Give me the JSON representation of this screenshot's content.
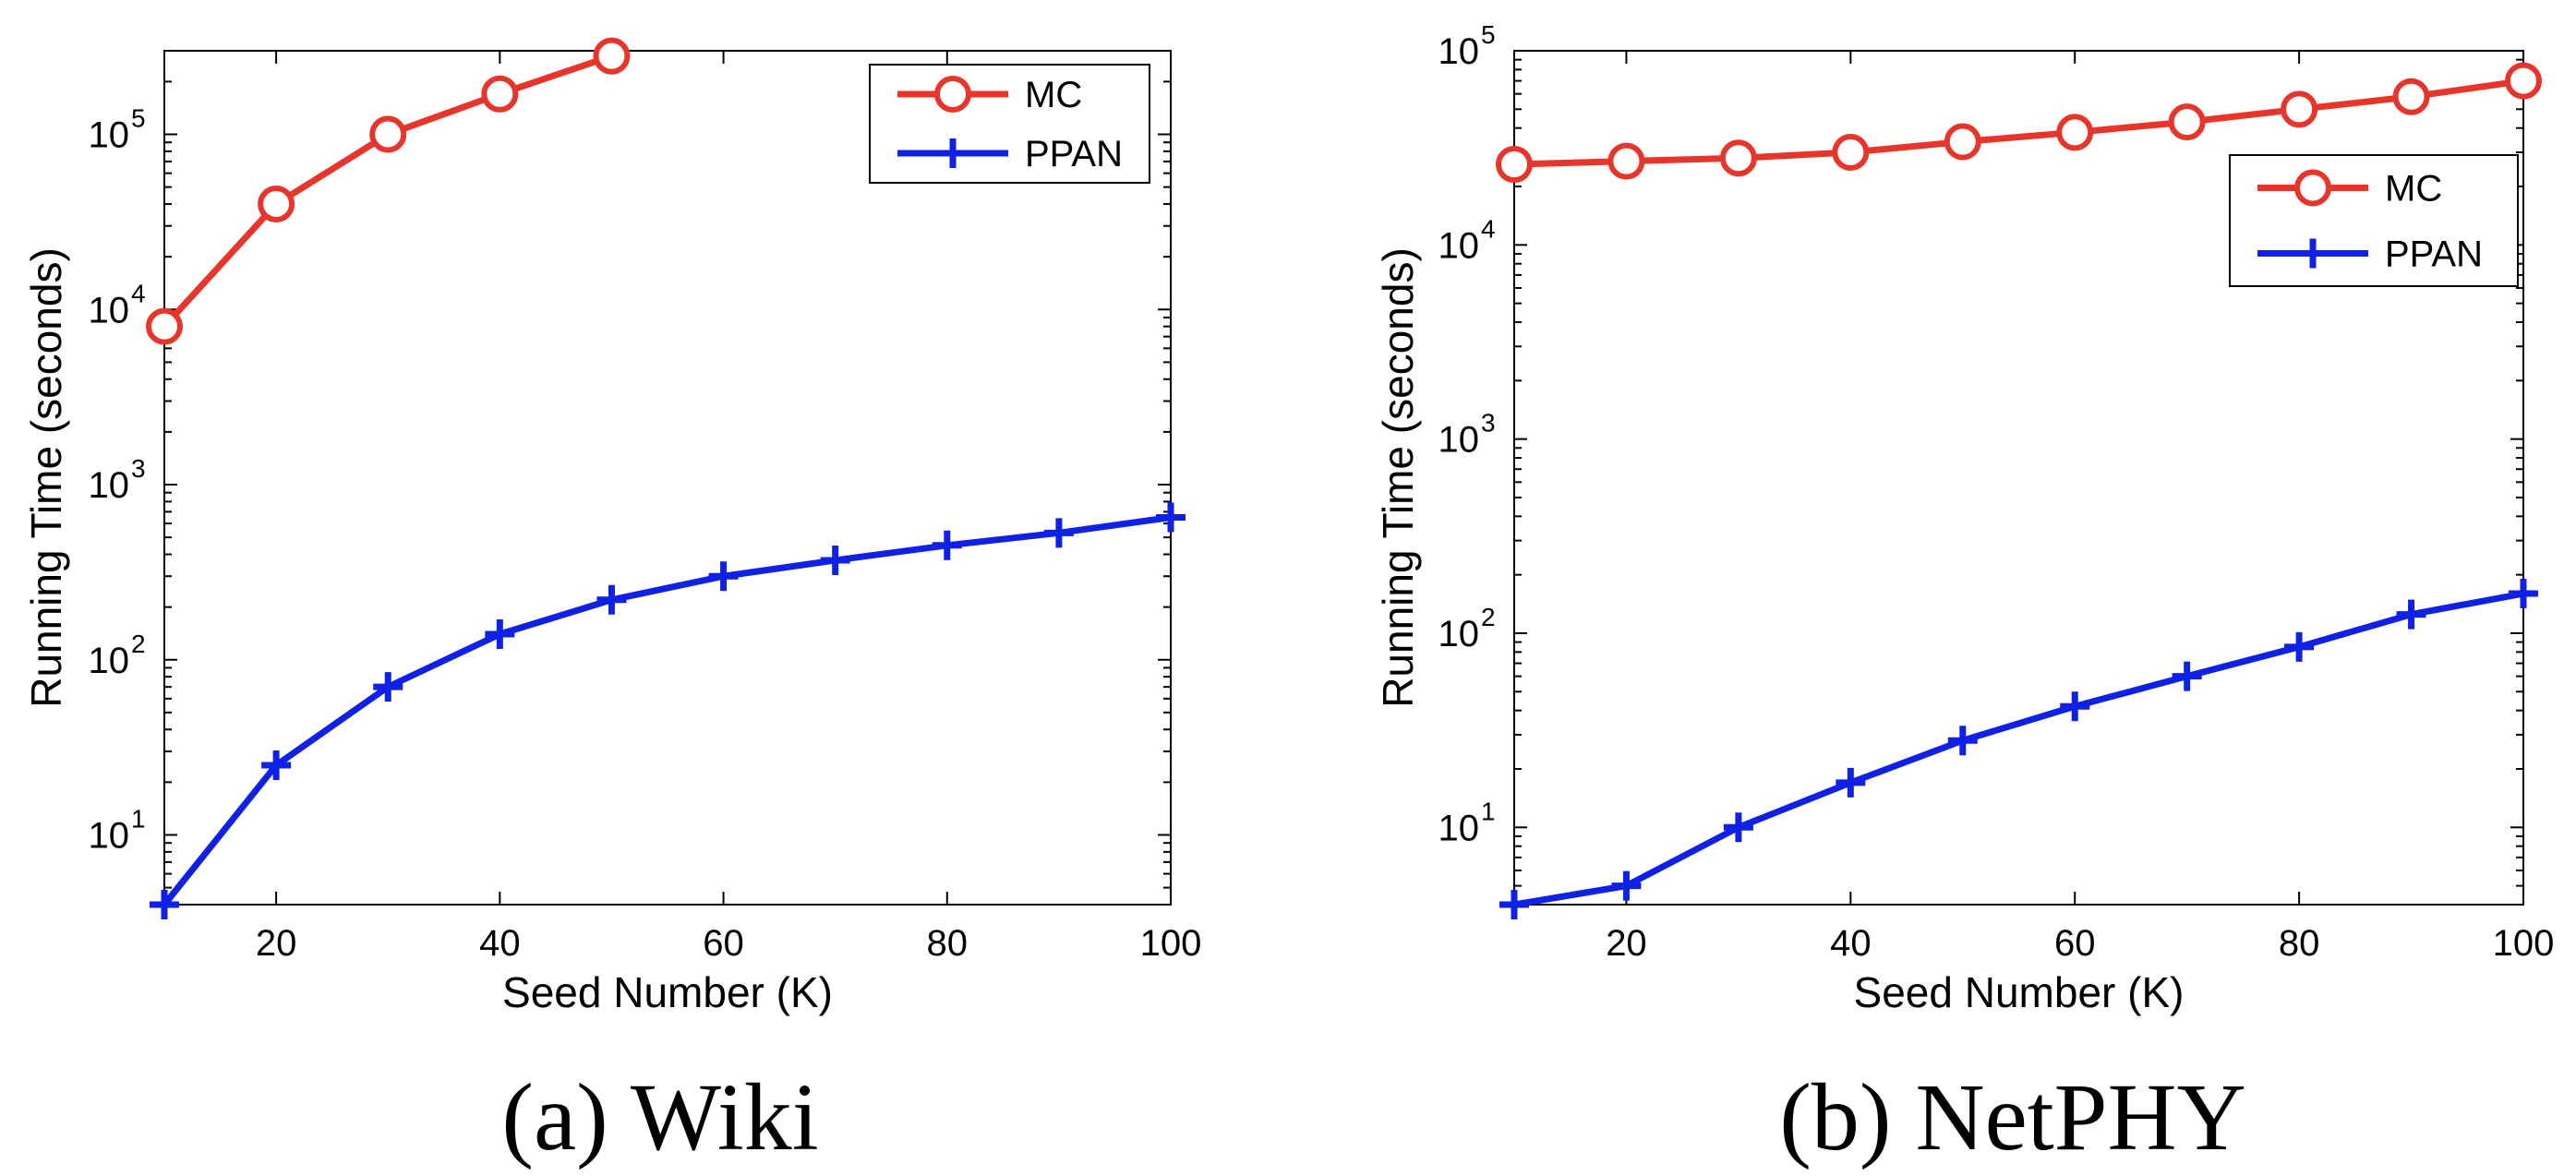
{
  "chart_data": [
    {
      "type": "line",
      "caption": "(a) Wiki",
      "xlabel": "Seed Number (K)",
      "ylabel": "Running Time (seconds)",
      "yscale": "log",
      "xlim": [
        10,
        100
      ],
      "ylim": [
        4,
        300000
      ],
      "xticks": [
        20,
        40,
        60,
        80,
        100
      ],
      "yticks": [
        {
          "value": 10,
          "base": "10",
          "exp": "1"
        },
        {
          "value": 100,
          "base": "10",
          "exp": "2"
        },
        {
          "value": 1000,
          "base": "10",
          "exp": "3"
        },
        {
          "value": 10000,
          "base": "10",
          "exp": "4"
        },
        {
          "value": 100000,
          "base": "10",
          "exp": "5"
        }
      ],
      "legend_position": "top-right",
      "series": [
        {
          "name": "MC",
          "color": "#e8352b",
          "marker": "circle",
          "x": [
            10,
            20,
            30,
            40,
            50
          ],
          "y": [
            8000,
            40000,
            100000,
            170000,
            280000
          ]
        },
        {
          "name": "PPAN",
          "color": "#1021e6",
          "marker": "plus",
          "x": [
            10,
            20,
            30,
            40,
            50,
            60,
            70,
            80,
            90,
            100
          ],
          "y": [
            4,
            25,
            70,
            140,
            220,
            300,
            370,
            450,
            530,
            650
          ]
        }
      ]
    },
    {
      "type": "line",
      "caption": "(b) NetPHY",
      "xlabel": "Seed Number (K)",
      "ylabel": "Running Time (seconds)",
      "yscale": "log",
      "xlim": [
        10,
        100
      ],
      "ylim": [
        4,
        100000
      ],
      "xticks": [
        20,
        40,
        60,
        80,
        100
      ],
      "yticks": [
        {
          "value": 10,
          "base": "10",
          "exp": "1"
        },
        {
          "value": 100,
          "base": "10",
          "exp": "2"
        },
        {
          "value": 1000,
          "base": "10",
          "exp": "3"
        },
        {
          "value": 10000,
          "base": "10",
          "exp": "4"
        },
        {
          "value": 100000,
          "base": "10",
          "exp": "5"
        }
      ],
      "legend_position": "top-right (below top)",
      "series": [
        {
          "name": "MC",
          "color": "#e8352b",
          "marker": "circle",
          "x": [
            10,
            20,
            30,
            40,
            50,
            60,
            70,
            80,
            90,
            100
          ],
          "y": [
            26000,
            27000,
            28000,
            30000,
            34000,
            38000,
            43000,
            50000,
            58000,
            70000
          ]
        },
        {
          "name": "PPAN",
          "color": "#1021e6",
          "marker": "plus",
          "x": [
            10,
            20,
            30,
            40,
            50,
            60,
            70,
            80,
            90,
            100
          ],
          "y": [
            4,
            5,
            10,
            17,
            28,
            42,
            60,
            85,
            125,
            160
          ]
        }
      ]
    }
  ]
}
